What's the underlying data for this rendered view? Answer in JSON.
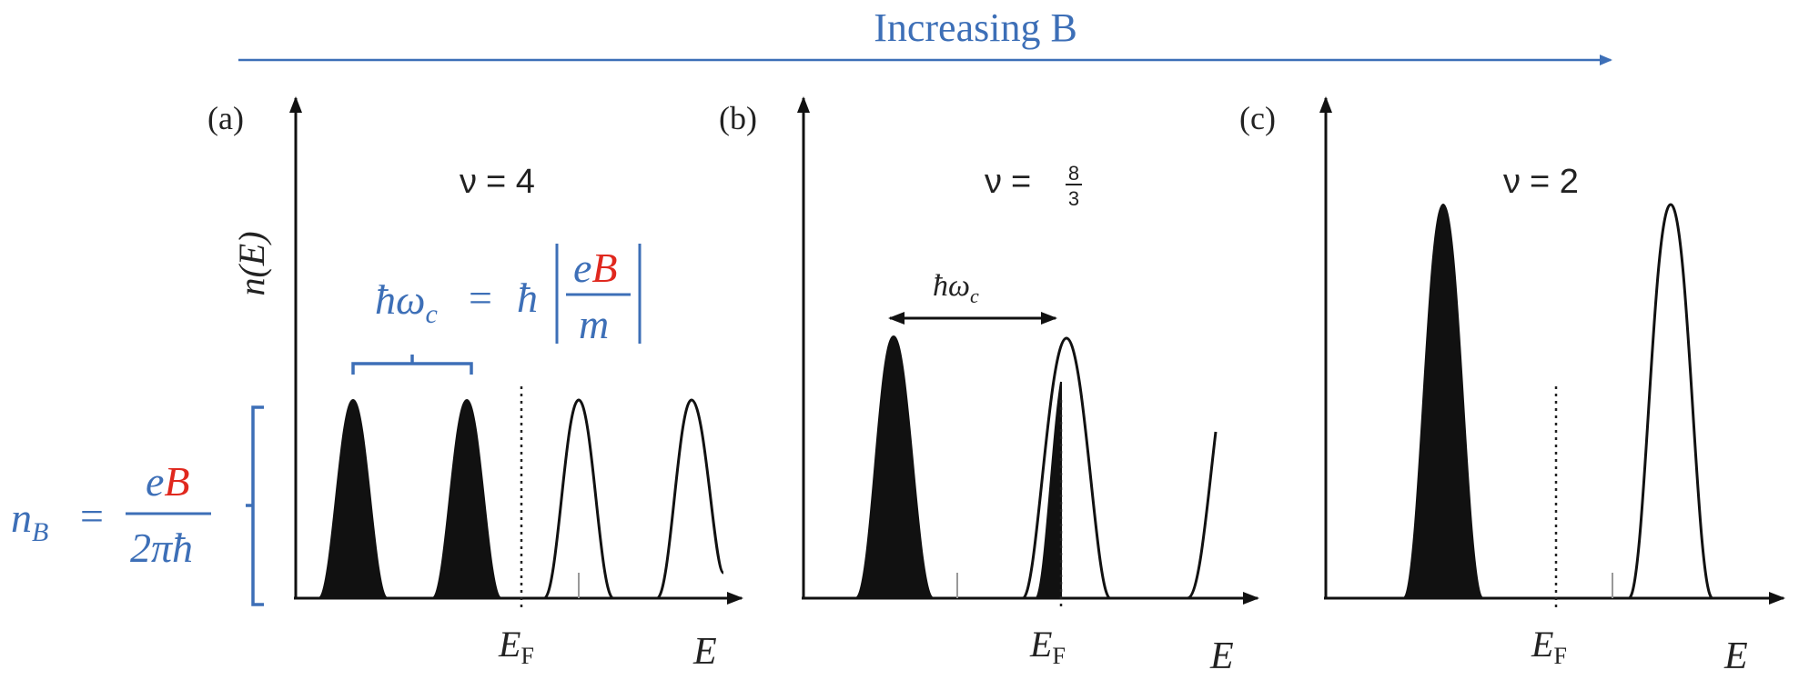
{
  "header": {
    "title": "Increasing B",
    "accent_color": "#3d6fb7"
  },
  "panels": [
    {
      "tag": "(a)",
      "nu_symbol": "ν",
      "nu_eq": "= 4",
      "ylabel": "n(E)",
      "xlabel": "E",
      "fermi_label": "E",
      "fermi_sub": "F"
    },
    {
      "tag": "(b)",
      "nu_symbol": "ν",
      "nu_eq": "=",
      "nu_num": "8",
      "nu_den": "3",
      "gap_label": "ħω",
      "gap_sub": "c",
      "xlabel": "E",
      "fermi_label": "E",
      "fermi_sub": "F"
    },
    {
      "tag": "(c)",
      "nu_symbol": "ν",
      "nu_eq": "= 2",
      "xlabel": "E",
      "fermi_label": "E",
      "fermi_sub": "F"
    }
  ],
  "annotations": {
    "cyclotron": {
      "lhs": "ħω",
      "lhs_sub": "c",
      "eq": "=",
      "hbar": "ħ",
      "num_e": "e",
      "num_B": "B",
      "den": "m"
    },
    "degeneracy": {
      "lhs": "n",
      "lhs_sub": "B",
      "eq": "=",
      "num_e": "e",
      "num_B": "B",
      "den": "2πħ"
    },
    "blue": "#3d6fb7",
    "red": "#e0281e"
  }
}
